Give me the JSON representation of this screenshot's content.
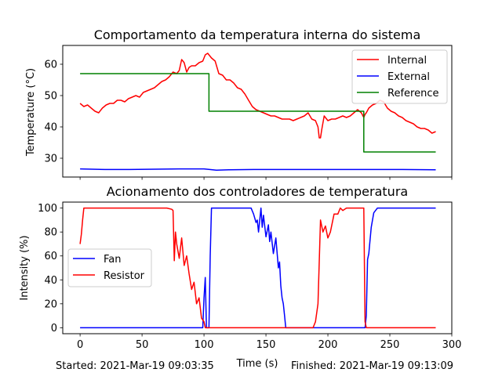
{
  "footer": {
    "started": "Started: 2021-Mar-19 09:03:35",
    "finished": "Finished: 2021-Mar-19 09:13:09"
  },
  "chart_data": [
    {
      "type": "line",
      "title": "Comportamento da temperatura interna do sistema",
      "xlabel": "",
      "ylabel": "Temperature (°C)",
      "xlim": [
        -14,
        300
      ],
      "ylim": [
        24,
        66
      ],
      "yticks": [
        30,
        40,
        50,
        60
      ],
      "xticks": [
        0,
        50,
        100,
        150,
        200,
        250,
        300
      ],
      "x_tick_labels_visible": false,
      "grid": false,
      "legend": "top-right",
      "series": [
        {
          "name": "Internal",
          "color": "#ff0000",
          "x": [
            0,
            3,
            6,
            9,
            12,
            15,
            18,
            21,
            24,
            27,
            30,
            33,
            36,
            39,
            42,
            45,
            48,
            51,
            54,
            57,
            60,
            63,
            66,
            69,
            72,
            75,
            78,
            80,
            82,
            84,
            86,
            88,
            90,
            93,
            96,
            99,
            100,
            101,
            103,
            106,
            109,
            112,
            115,
            118,
            121,
            124,
            127,
            130,
            133,
            136,
            139,
            142,
            145,
            148,
            151,
            154,
            157,
            160,
            163,
            166,
            169,
            172,
            175,
            178,
            181,
            184,
            187,
            190,
            192,
            193,
            194,
            195,
            197,
            200,
            203,
            206,
            209,
            212,
            215,
            218,
            221,
            224,
            227,
            229,
            230,
            231,
            233,
            236,
            239,
            242,
            245,
            248,
            251,
            254,
            257,
            260,
            263,
            266,
            269,
            272,
            275,
            278,
            281,
            284,
            287
          ],
          "y": [
            47.5,
            46.5,
            47,
            46,
            45,
            44.5,
            46,
            47,
            47.5,
            47.5,
            48.5,
            48.5,
            48,
            49,
            49.5,
            50,
            49.5,
            51,
            51.5,
            52,
            52.5,
            53.5,
            54.5,
            55,
            56,
            57.5,
            57,
            58,
            61.5,
            60.5,
            57.5,
            59,
            59.5,
            59.5,
            60.5,
            61,
            62,
            63,
            63.5,
            62,
            61,
            57,
            56.5,
            55,
            55,
            54,
            52.5,
            52,
            50.5,
            48.5,
            46.5,
            45.5,
            45,
            44.5,
            44,
            43.5,
            43.5,
            43,
            42.5,
            42.5,
            42.5,
            42,
            42.5,
            43,
            43.5,
            44.5,
            42.5,
            42,
            40,
            36.5,
            36.5,
            39,
            43.5,
            42,
            42.5,
            42.5,
            43,
            43.5,
            43,
            43.5,
            44.5,
            45.5,
            44.5,
            43,
            44,
            44.5,
            46,
            47,
            47.5,
            48.5,
            48,
            46,
            45,
            44.5,
            43.5,
            43,
            42,
            41.5,
            41,
            40,
            39.5,
            39.5,
            39,
            38,
            38.5
          ]
        },
        {
          "name": "External",
          "color": "#0000ff",
          "x": [
            0,
            20,
            40,
            60,
            80,
            100,
            110,
            120,
            140,
            160,
            180,
            200,
            220,
            240,
            260,
            287
          ],
          "y": [
            26.6,
            26.4,
            26.4,
            26.5,
            26.6,
            26.6,
            26.2,
            26.3,
            26.4,
            26.4,
            26.4,
            26.4,
            26.4,
            26.4,
            26.4,
            26.3
          ]
        },
        {
          "name": "Reference",
          "color": "#008000",
          "x": [
            0,
            104,
            104,
            229,
            229,
            287
          ],
          "y": [
            57,
            57,
            45,
            45,
            32,
            32
          ]
        }
      ]
    },
    {
      "type": "line",
      "title": "Acionamento dos controladores de temperatura",
      "xlabel": "Time (s)",
      "ylabel": "Intensity (%)",
      "xlim": [
        -14,
        300
      ],
      "ylim": [
        -5,
        105
      ],
      "yticks": [
        0,
        20,
        40,
        60,
        80,
        100
      ],
      "xticks": [
        0,
        50,
        100,
        150,
        200,
        250,
        300
      ],
      "grid": false,
      "legend": "center-left",
      "series": [
        {
          "name": "Fan",
          "color": "#0000ff",
          "x": [
            0,
            99,
            100,
            101,
            102,
            103,
            104,
            105,
            106,
            138,
            140,
            142,
            143,
            144,
            146,
            147,
            148,
            150,
            152,
            153,
            154,
            156,
            158,
            160,
            161,
            162,
            163,
            164,
            165,
            166,
            230,
            231,
            232,
            233,
            235,
            237,
            240,
            287
          ],
          "y": [
            0,
            0,
            25,
            42,
            0,
            0,
            0,
            60,
            100,
            100,
            95,
            88,
            90,
            80,
            100,
            84,
            94,
            76,
            86,
            72,
            80,
            62,
            75,
            50,
            55,
            35,
            25,
            20,
            10,
            0,
            0,
            10,
            57,
            62,
            84,
            96,
            100,
            100
          ]
        },
        {
          "name": "Resistor",
          "color": "#ff0000",
          "x": [
            0,
            1,
            2,
            3,
            5,
            20,
            40,
            60,
            70,
            74,
            75,
            76,
            77,
            78,
            80,
            82,
            84,
            86,
            88,
            90,
            92,
            94,
            96,
            98,
            100,
            101,
            104,
            120,
            140,
            160,
            180,
            188,
            190,
            192,
            194,
            196,
            198,
            200,
            202,
            205,
            208,
            210,
            212,
            215,
            220,
            225,
            227,
            228,
            229,
            230,
            231,
            287
          ],
          "y": [
            70,
            78,
            90,
            100,
            100,
            100,
            100,
            100,
            100,
            99,
            98,
            56,
            80,
            70,
            58,
            75,
            52,
            60,
            45,
            32,
            38,
            20,
            25,
            8,
            5,
            0,
            0,
            0,
            0,
            0,
            0,
            0,
            5,
            20,
            90,
            80,
            85,
            75,
            80,
            95,
            95,
            100,
            98,
            100,
            100,
            100,
            100,
            100,
            100,
            5,
            0,
            0
          ]
        }
      ]
    }
  ]
}
